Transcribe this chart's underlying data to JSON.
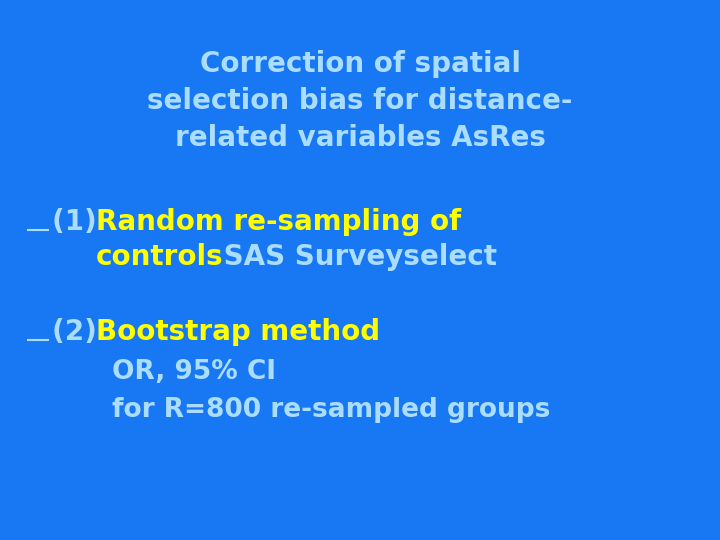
{
  "background_color": "#1877f2",
  "title_lines": [
    "Correction of spatial",
    "selection bias for distance-",
    "related variables AsRes"
  ],
  "title_color": "#aaddff",
  "title_fontsize": 20,
  "bullet_color": "#aaddff",
  "bullet_fontsize": 20,
  "yellow_color": "#ffff00",
  "sub_fontsize": 19,
  "line1_prefix": "(1) ",
  "line1_yellow1": "Random re-sampling of",
  "line1_yellow2": "controls",
  "line1_white2": " SAS Surveyselect",
  "line2_prefix": "(2) ",
  "line2_yellow": "Bootstrap method",
  "line3_white": "OR, 95% CI",
  "line4_white": "for R=800 re-sampled groups"
}
